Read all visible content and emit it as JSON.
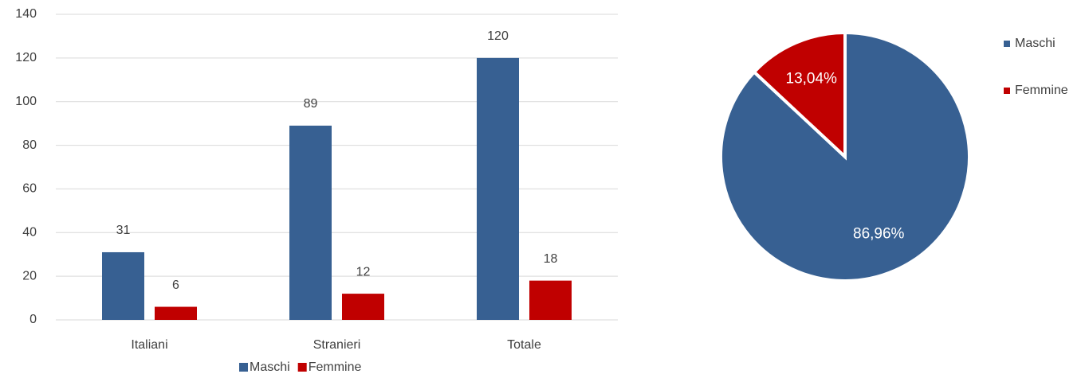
{
  "chart_data": [
    {
      "type": "bar",
      "categories": [
        "Italiani",
        "Stranieri",
        "Totale"
      ],
      "series": [
        {
          "name": "Maschi",
          "color": "#376092",
          "values": [
            31,
            89,
            120
          ]
        },
        {
          "name": "Femmine",
          "color": "#c00000",
          "values": [
            6,
            12,
            18
          ]
        }
      ],
      "ylim": [
        0,
        140
      ],
      "yticks": [
        0,
        20,
        40,
        60,
        80,
        100,
        120,
        140
      ],
      "grid": true,
      "legend": "bottom"
    },
    {
      "type": "pie",
      "categories": [
        "Maschi",
        "Femmine"
      ],
      "values": [
        86.96,
        13.04
      ],
      "value_labels": [
        "86,96%",
        "13,04%"
      ],
      "colors": [
        "#376092",
        "#c00000"
      ],
      "legend": "right"
    }
  ]
}
